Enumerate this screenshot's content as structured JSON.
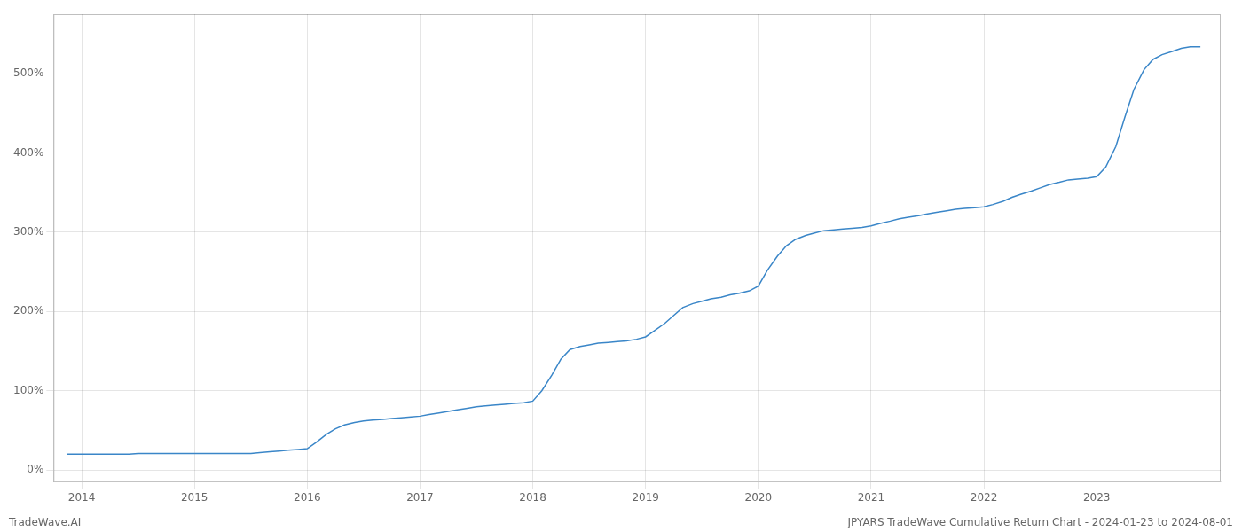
{
  "chart_data": {
    "type": "line",
    "color": "#3a86c8",
    "x": [
      2013.87,
      2014.0,
      2014.08,
      2014.17,
      2014.25,
      2014.33,
      2014.42,
      2014.5,
      2014.58,
      2014.67,
      2014.75,
      2014.83,
      2014.92,
      2015.0,
      2015.08,
      2015.17,
      2015.25,
      2015.33,
      2015.42,
      2015.5,
      2015.58,
      2015.67,
      2015.75,
      2015.83,
      2015.92,
      2016.0,
      2016.08,
      2016.17,
      2016.25,
      2016.33,
      2016.42,
      2016.5,
      2016.58,
      2016.67,
      2016.75,
      2016.83,
      2016.92,
      2017.0,
      2017.08,
      2017.17,
      2017.25,
      2017.33,
      2017.42,
      2017.5,
      2017.58,
      2017.67,
      2017.75,
      2017.83,
      2017.92,
      2018.0,
      2018.08,
      2018.17,
      2018.25,
      2018.33,
      2018.42,
      2018.5,
      2018.58,
      2018.67,
      2018.75,
      2018.83,
      2018.92,
      2019.0,
      2019.08,
      2019.17,
      2019.25,
      2019.33,
      2019.42,
      2019.5,
      2019.58,
      2019.67,
      2019.75,
      2019.83,
      2019.92,
      2020.0,
      2020.08,
      2020.17,
      2020.25,
      2020.33,
      2020.42,
      2020.5,
      2020.58,
      2020.67,
      2020.75,
      2020.83,
      2020.92,
      2021.0,
      2021.08,
      2021.17,
      2021.25,
      2021.33,
      2021.42,
      2021.5,
      2021.58,
      2021.67,
      2021.75,
      2021.83,
      2021.92,
      2022.0,
      2022.08,
      2022.17,
      2022.25,
      2022.33,
      2022.42,
      2022.5,
      2022.58,
      2022.67,
      2022.75,
      2022.83,
      2022.92,
      2023.0,
      2023.08,
      2023.17,
      2023.25,
      2023.33,
      2023.42,
      2023.5,
      2023.58,
      2023.67,
      2023.75,
      2023.83,
      2023.92
    ],
    "values": [
      20,
      20,
      20,
      20,
      20,
      20,
      20,
      21,
      21,
      21,
      21,
      21,
      21,
      21,
      21,
      21,
      21,
      21,
      21,
      21,
      22,
      23,
      24,
      25,
      26,
      27,
      35,
      45,
      52,
      57,
      60,
      62,
      63,
      64,
      65,
      66,
      67,
      68,
      70,
      72,
      74,
      76,
      78,
      80,
      81,
      82,
      83,
      84,
      85,
      87,
      100,
      120,
      140,
      152,
      156,
      158,
      160,
      161,
      162,
      163,
      165,
      168,
      176,
      185,
      195,
      205,
      210,
      213,
      216,
      218,
      221,
      223,
      226,
      232,
      252,
      270,
      283,
      291,
      296,
      299,
      302,
      303,
      304,
      305,
      306,
      308,
      311,
      314,
      317,
      319,
      321,
      323,
      325,
      327,
      329,
      330,
      331,
      332,
      335,
      339,
      344,
      348,
      352,
      356,
      360,
      363,
      366,
      367,
      368,
      370,
      382,
      408,
      445,
      480,
      505,
      518,
      524,
      528,
      532,
      534,
      534
    ],
    "xlim": [
      2013.75,
      2024.1
    ],
    "xticks": [
      2014,
      2015,
      2016,
      2017,
      2018,
      2019,
      2020,
      2021,
      2022,
      2023
    ],
    "ylim": [
      -15,
      575
    ],
    "yticks": [
      {
        "value": 0,
        "label": "0%"
      },
      {
        "value": 100,
        "label": "100%"
      },
      {
        "value": 200,
        "label": "200%"
      },
      {
        "value": 300,
        "label": "300%"
      },
      {
        "value": 400,
        "label": "400%"
      },
      {
        "value": 500,
        "label": "500%"
      }
    ],
    "grid": true,
    "annotations": [
      "TradeWave.AI",
      "JPYARS TradeWave Cumulative Return Chart - 2024-01-23 to 2024-08-01"
    ]
  }
}
